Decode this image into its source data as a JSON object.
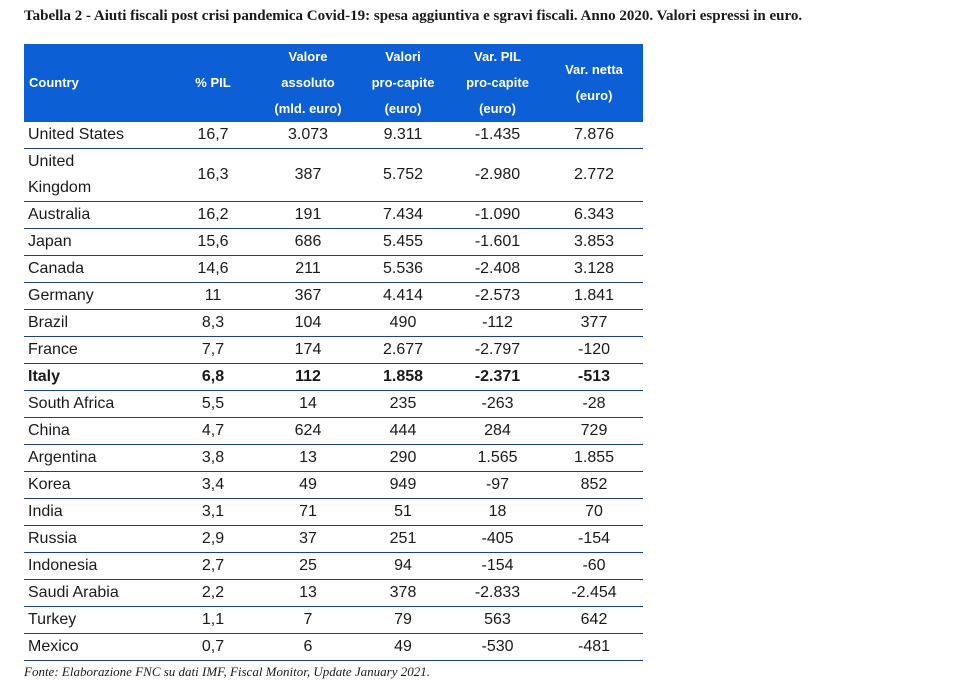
{
  "caption": "Tabella 2 - Aiuti fiscali post crisi pandemica Covid-19: spesa aggiuntiva e sgravi fiscali. Anno 2020. Valori espressi in euro.",
  "headers": [
    [
      "Country"
    ],
    [
      "% PIL"
    ],
    [
      "Valore",
      "assoluto",
      "(mld. euro)"
    ],
    [
      "Valori",
      "pro-capite",
      "(euro)"
    ],
    [
      "Var. PIL",
      "pro-capite",
      "(euro)"
    ],
    [
      "Var. netta",
      "(euro)"
    ]
  ],
  "rows": [
    {
      "country": "United States",
      "pil": "16,7",
      "valore": "3.073",
      "procapite": "9.311",
      "var_pil": "-1.435",
      "var_netta": "7.876"
    },
    {
      "country": "United Kingdom",
      "pil": "16,3",
      "valore": "387",
      "procapite": "5.752",
      "var_pil": "-2.980",
      "var_netta": "2.772"
    },
    {
      "country": "Australia",
      "pil": "16,2",
      "valore": "191",
      "procapite": "7.434",
      "var_pil": "-1.090",
      "var_netta": "6.343"
    },
    {
      "country": "Japan",
      "pil": "15,6",
      "valore": "686",
      "procapite": "5.455",
      "var_pil": "-1.601",
      "var_netta": "3.853"
    },
    {
      "country": "Canada",
      "pil": "14,6",
      "valore": "211",
      "procapite": "5.536",
      "var_pil": "-2.408",
      "var_netta": "3.128"
    },
    {
      "country": "Germany",
      "pil": "11",
      "valore": "367",
      "procapite": "4.414",
      "var_pil": "-2.573",
      "var_netta": "1.841"
    },
    {
      "country": "Brazil",
      "pil": "8,3",
      "valore": "104",
      "procapite": "490",
      "var_pil": "-112",
      "var_netta": "377"
    },
    {
      "country": "France",
      "pil": "7,7",
      "valore": "174",
      "procapite": "2.677",
      "var_pil": "-2.797",
      "var_netta": "-120"
    },
    {
      "country": "Italy",
      "pil": "6,8",
      "valore": "112",
      "procapite": "1.858",
      "var_pil": "-2.371",
      "var_netta": "-513"
    },
    {
      "country": "South Africa",
      "pil": "5,5",
      "valore": "14",
      "procapite": "235",
      "var_pil": "-263",
      "var_netta": "-28"
    },
    {
      "country": "China",
      "pil": "4,7",
      "valore": "624",
      "procapite": "444",
      "var_pil": "284",
      "var_netta": "729"
    },
    {
      "country": "Argentina",
      "pil": "3,8",
      "valore": "13",
      "procapite": "290",
      "var_pil": "1.565",
      "var_netta": "1.855"
    },
    {
      "country": "Korea",
      "pil": "3,4",
      "valore": "49",
      "procapite": "949",
      "var_pil": "-97",
      "var_netta": "852"
    },
    {
      "country": "India",
      "pil": "3,1",
      "valore": "71",
      "procapite": "51",
      "var_pil": "18",
      "var_netta": "70"
    },
    {
      "country": "Russia",
      "pil": "2,9",
      "valore": "37",
      "procapite": "251",
      "var_pil": "-405",
      "var_netta": "-154"
    },
    {
      "country": "Indonesia",
      "pil": "2,7",
      "valore": "25",
      "procapite": "94",
      "var_pil": "-154",
      "var_netta": "-60"
    },
    {
      "country": "Saudi Arabia",
      "pil": "2,2",
      "valore": "13",
      "procapite": "378",
      "var_pil": "-2.833",
      "var_netta": "-2.454"
    },
    {
      "country": "Turkey",
      "pil": "1,1",
      "valore": "7",
      "procapite": "79",
      "var_pil": "563",
      "var_netta": "642"
    },
    {
      "country": "Mexico",
      "pil": "0,7",
      "valore": "6",
      "procapite": "49",
      "var_pil": "-530",
      "var_netta": "-481"
    }
  ],
  "source": "Fonte: Elaborazione FNC su dati IMF, Fiscal Monitor, Update January 2021."
}
